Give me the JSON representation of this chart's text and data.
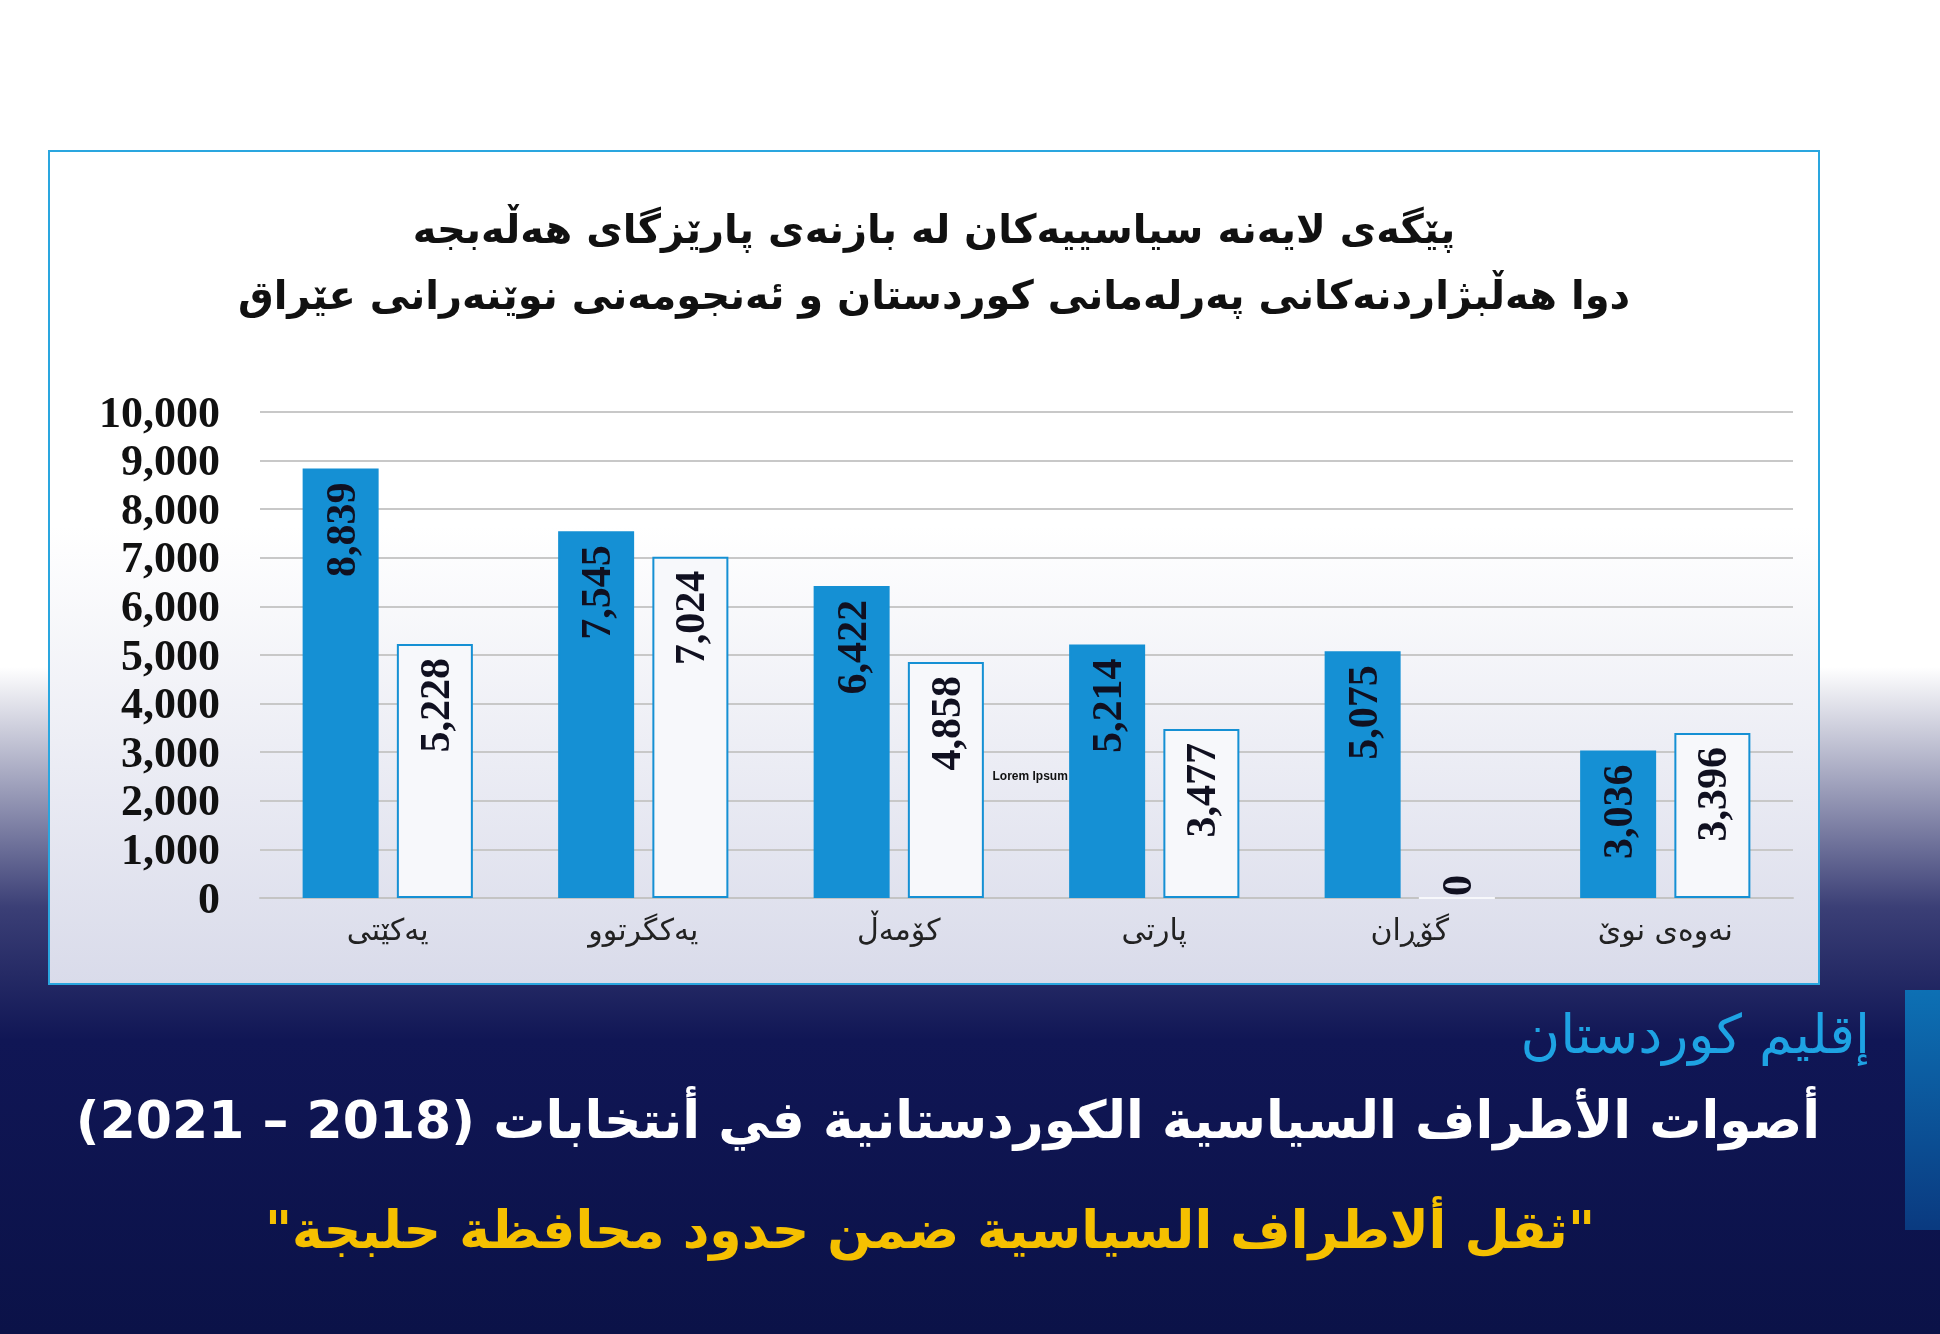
{
  "chart_data": {
    "type": "bar",
    "title": "پێگەی لایەنە سیاسییەکان لە بازنەی پارێزگای هەڵەبجە",
    "subtitle": "دوا هەڵبژاردنەکانی پەرلەمانی کوردستان و ئەنجومەنی نوێنەرانی عێراق",
    "categories": [
      "یەکێتی",
      "یەکگرتوو",
      "کۆمەڵ",
      "پارتی",
      "گۆڕان",
      "نەوەی نوێ"
    ],
    "series": [
      {
        "color": "#1590d4",
        "values": [
          8839,
          7545,
          6422,
          5214,
          5075,
          3036
        ],
        "value_labels": [
          "8,839",
          "7,545",
          "6,422",
          "5,214",
          "5,075",
          "3,036"
        ]
      },
      {
        "color": "#f7f8fb",
        "values": [
          5228,
          7024,
          4858,
          3477,
          0,
          3396
        ],
        "value_labels": [
          "5,228",
          "7,024",
          "4,858",
          "3,477",
          "0",
          "3,396"
        ]
      }
    ],
    "ylim": [
      0,
      10000
    ],
    "yticks": [
      0,
      {
        "value": 1000,
        "label": "1,000"
      },
      {
        "value": 2000,
        "label": "2,000"
      },
      {
        "value": 3000,
        "label": "3,000"
      },
      {
        "value": 4000,
        "label": "4,000"
      },
      {
        "value": 5000,
        "label": "5,000"
      },
      {
        "value": 6000,
        "label": "6,000"
      },
      {
        "value": 7000,
        "label": "7,000"
      },
      {
        "value": 8000,
        "label": "8,000"
      },
      {
        "value": 9000,
        "label": "9,000"
      },
      {
        "value": 10000,
        "label": "10,000"
      }
    ],
    "grid": "y",
    "annotations": [
      "إقليم كوردستان",
      "أصوات الأطراف السياسية الكوردستانية في أنتخابات (2018 – 2021)",
      "\"ثقل ألاطراف السياسية ضمن حدود محافظة حلبجة\"",
      "Lorem Ipsum"
    ]
  }
}
